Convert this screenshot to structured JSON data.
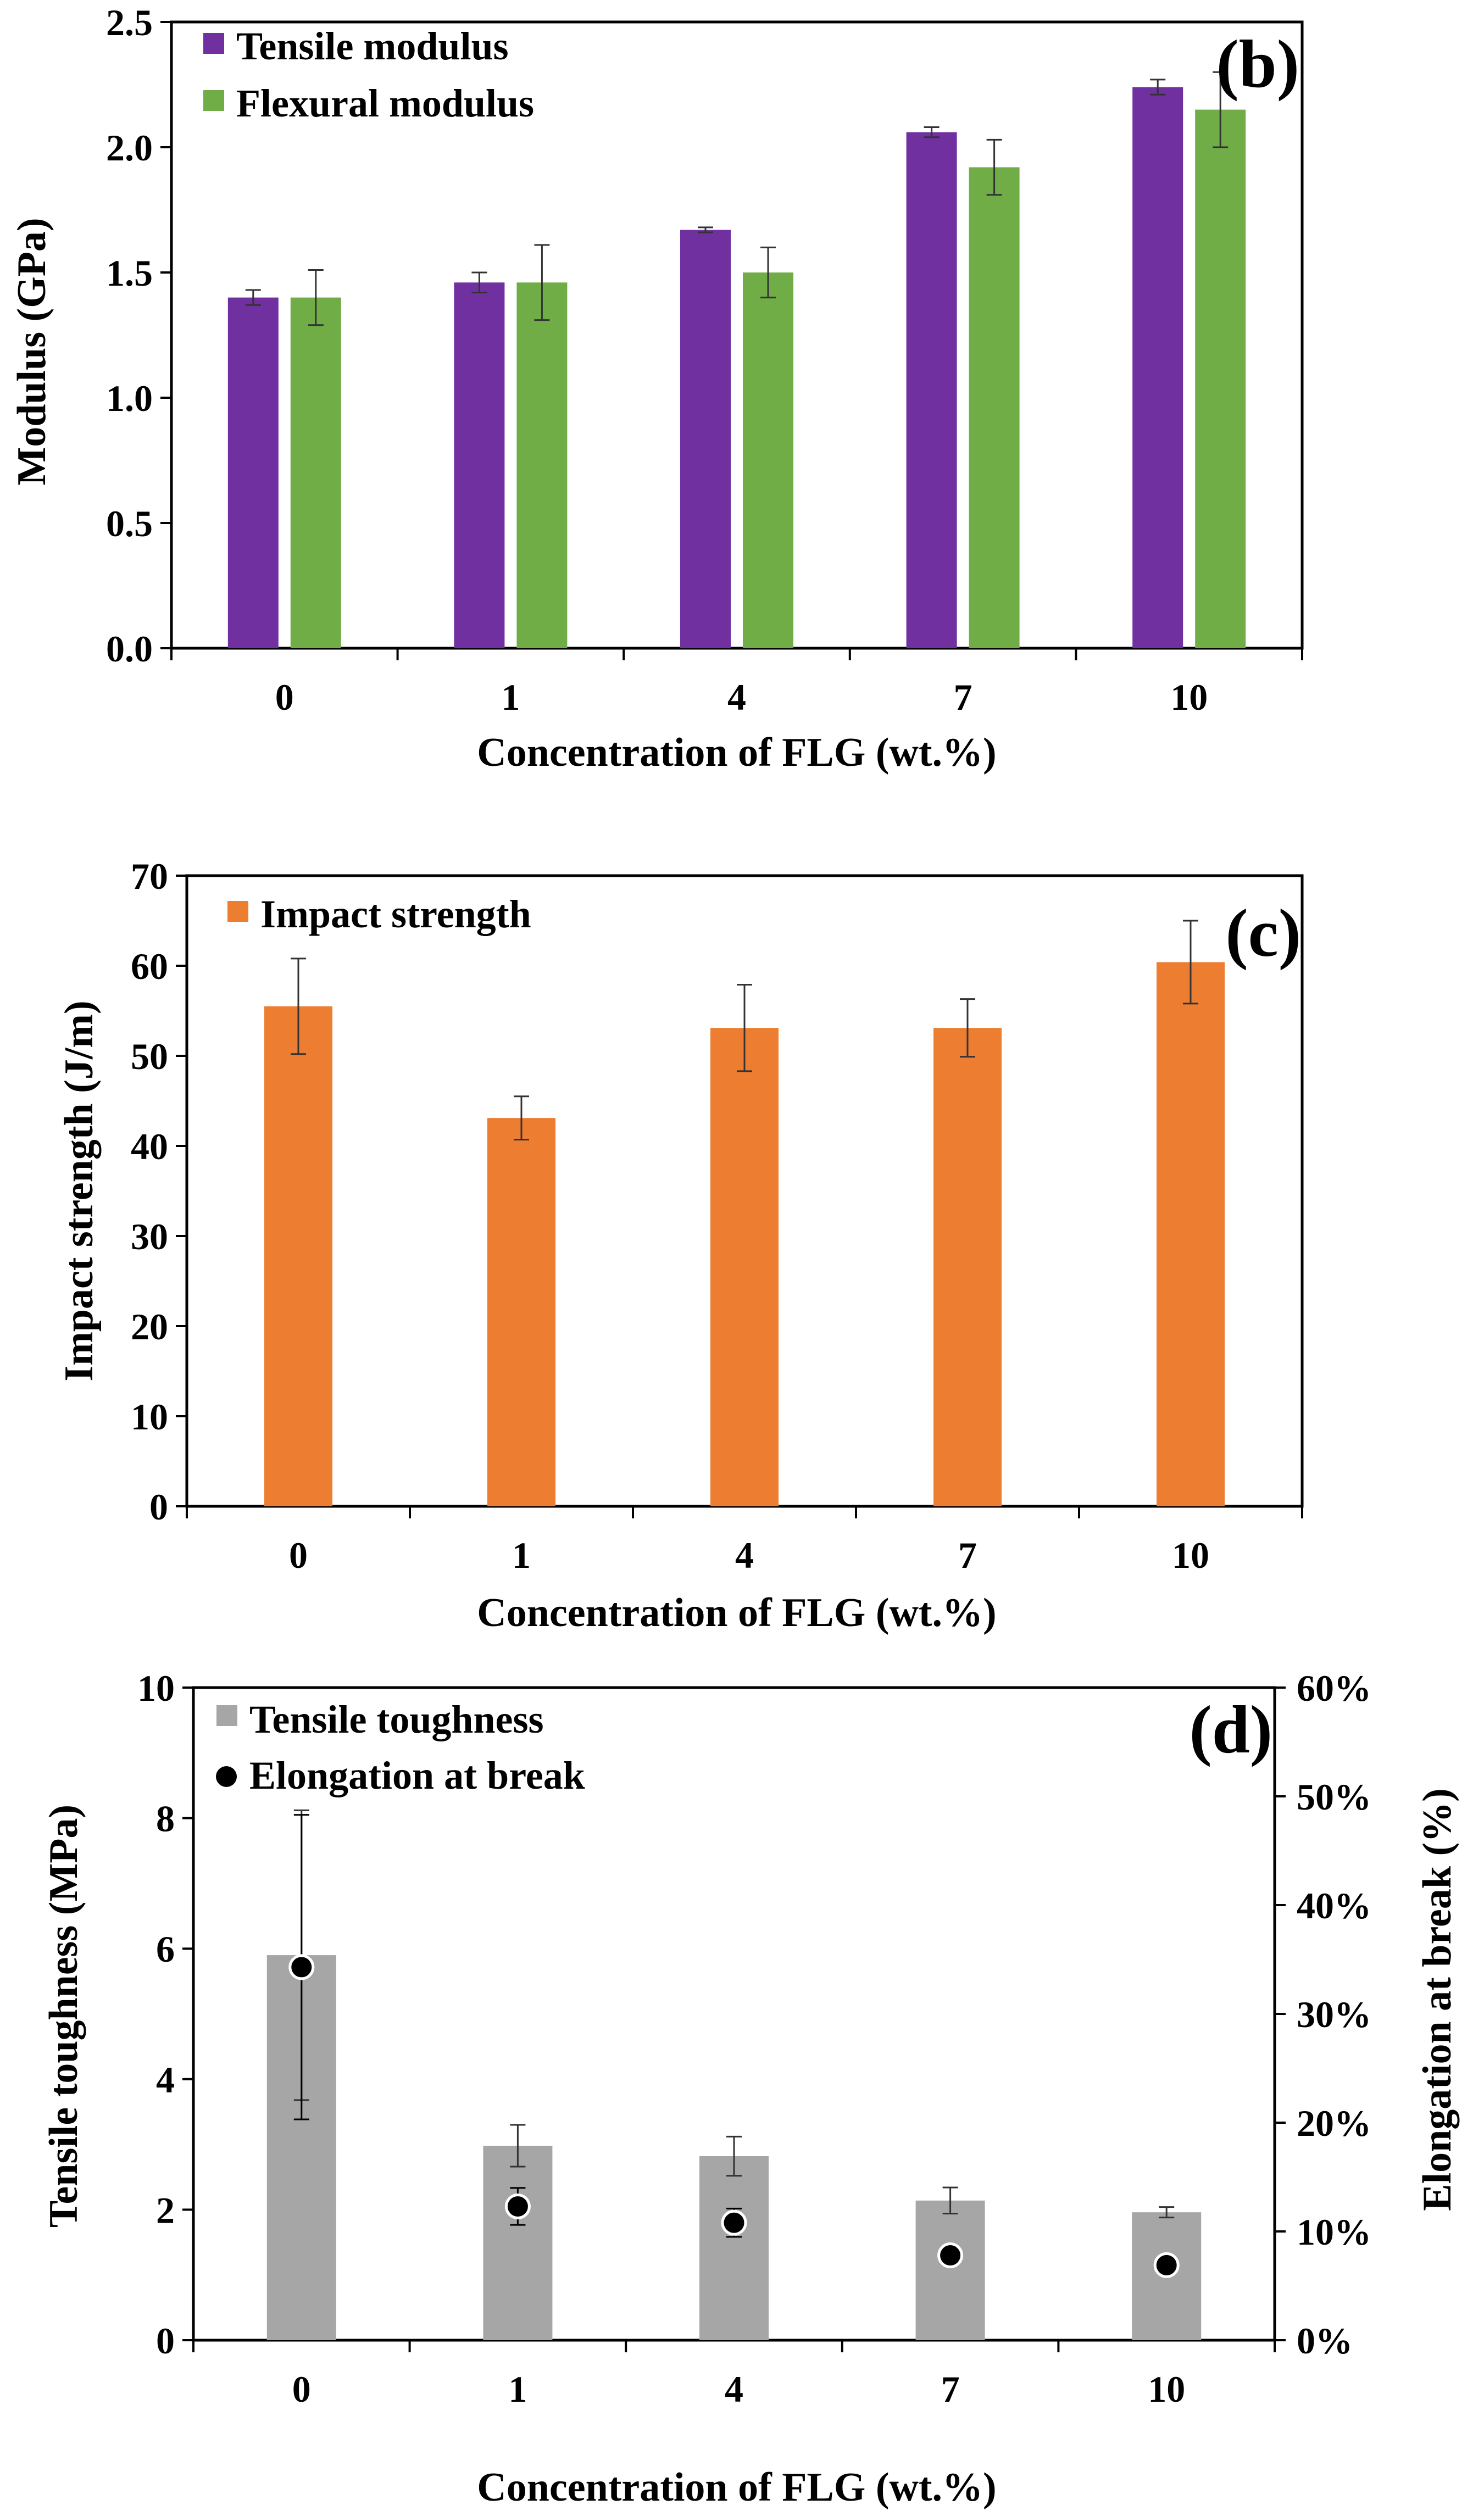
{
  "chart_data": [
    {
      "type": "bar",
      "panel_label": "(b)",
      "categories": [
        "0",
        "1",
        "4",
        "7",
        "10"
      ],
      "xlabel": "Concentration of FLG (wt.%)",
      "ylabel": "Modulus (GPa)",
      "ylim": [
        0,
        2.5
      ],
      "yticks": [
        "0.0",
        "0.5",
        "1.0",
        "1.5",
        "2.0",
        "2.5"
      ],
      "legend_position": "top-left",
      "series": [
        {
          "name": "Tensile modulus",
          "color": "#7030A0",
          "values": [
            1.4,
            1.46,
            1.67,
            2.06,
            2.24
          ],
          "errors": [
            0.03,
            0.04,
            0.01,
            0.02,
            0.03
          ]
        },
        {
          "name": "Flexural modulus",
          "color": "#70AD47",
          "values": [
            1.4,
            1.46,
            1.5,
            1.92,
            2.15
          ],
          "errors": [
            0.11,
            0.15,
            0.1,
            0.11,
            0.15
          ]
        }
      ]
    },
    {
      "type": "bar",
      "panel_label": "(c)",
      "categories": [
        "0",
        "1",
        "4",
        "7",
        "10"
      ],
      "xlabel": "Concentration of FLG (wt.%)",
      "ylabel": "Impact strength (J/m)",
      "ylim": [
        0,
        70
      ],
      "yticks": [
        "0",
        "10",
        "20",
        "30",
        "40",
        "50",
        "60",
        "70"
      ],
      "legend_position": "top-left",
      "series": [
        {
          "name": "Impact strength",
          "color": "#ED7D31",
          "values": [
            55.5,
            43.1,
            53.1,
            53.1,
            60.4
          ],
          "errors": [
            5.3,
            2.4,
            4.8,
            3.2,
            4.6
          ]
        }
      ]
    },
    {
      "type": "bar",
      "panel_label": "(d)",
      "categories": [
        "0",
        "1",
        "4",
        "7",
        "10"
      ],
      "xlabel": "Concentration of FLG (wt.%)",
      "ylabel": "Tensile toughness (MPa)",
      "y2label": "Elongation at break (%)",
      "ylim": [
        0,
        10
      ],
      "yticks": [
        "0",
        "2",
        "4",
        "6",
        "8",
        "10"
      ],
      "y2lim": [
        0,
        60
      ],
      "y2ticks": [
        "0%",
        "10%",
        "20%",
        "30%",
        "40%",
        "50%",
        "60%"
      ],
      "legend_position": "top-left",
      "series": [
        {
          "name": "Tensile toughness",
          "color": "#A6A6A6",
          "axis": "left",
          "kind": "bar",
          "values": [
            5.9,
            2.98,
            2.82,
            2.14,
            1.96
          ],
          "errors": [
            2.22,
            0.32,
            0.3,
            0.2,
            0.08
          ]
        },
        {
          "name": "Elongation at break",
          "color": "#000000",
          "axis": "right",
          "kind": "scatter",
          "unit": "%",
          "values": [
            34.3,
            12.3,
            10.8,
            7.8,
            6.9
          ],
          "errors": [
            14.0,
            1.7,
            1.3,
            0.5,
            0.3
          ]
        }
      ]
    }
  ]
}
